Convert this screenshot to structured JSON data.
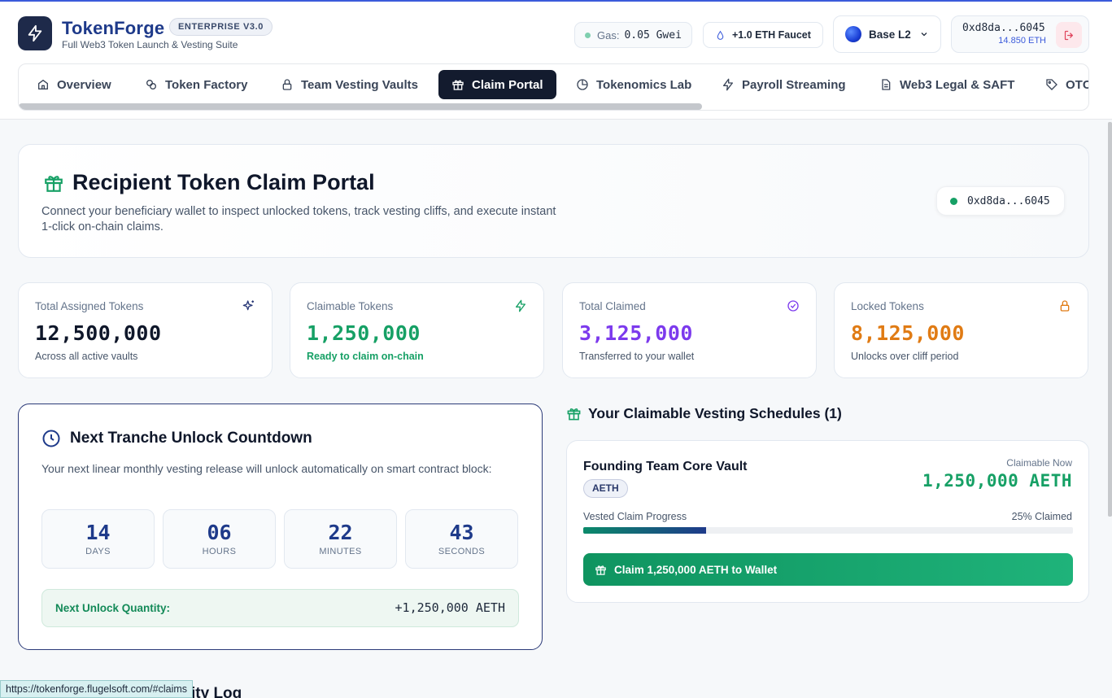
{
  "app": {
    "brand": "TokenForge",
    "edition_badge": "ENTERPRISE V3.0",
    "tagline": "Full Web3 Token Launch & Vesting Suite"
  },
  "header": {
    "gas_label": "Gas:",
    "gas_value": "0.05 Gwei",
    "faucet_label": "+1.0 ETH Faucet",
    "network_label": "Base L2",
    "wallet_address": "0xd8da...6045",
    "wallet_balance": "14.850 ETH"
  },
  "tabs": [
    {
      "label": "Overview",
      "icon": "home-icon"
    },
    {
      "label": "Token Factory",
      "icon": "coins-icon"
    },
    {
      "label": "Team Vesting Vaults",
      "icon": "lock-icon"
    },
    {
      "label": "Claim Portal",
      "icon": "gift-icon",
      "active": true
    },
    {
      "label": "Tokenomics Lab",
      "icon": "pie-chart-icon"
    },
    {
      "label": "Payroll Streaming",
      "icon": "bolt-icon"
    },
    {
      "label": "Web3 Legal & SAFT",
      "icon": "document-icon"
    },
    {
      "label": "OTC",
      "icon": "tag-icon"
    }
  ],
  "hero": {
    "title": "Recipient Token Claim Portal",
    "description": "Connect your beneficiary wallet to inspect unlocked tokens, track vesting cliffs, and execute instant 1-click on-chain claims.",
    "connected_address": "0xd8da...6045"
  },
  "stats": [
    {
      "label": "Total Assigned Tokens",
      "value": "12,500,000",
      "sub": "Across all active vaults",
      "color": "#0f172a",
      "sub_color": "#475569",
      "icon": "sparkle-icon"
    },
    {
      "label": "Claimable Tokens",
      "value": "1,250,000",
      "sub": "Ready to claim on-chain",
      "color": "#16a065",
      "sub_color": "#16a065",
      "icon": "bolt-icon"
    },
    {
      "label": "Total Claimed",
      "value": "3,125,000",
      "sub": "Transferred to your wallet",
      "color": "#7c3aed",
      "sub_color": "#475569",
      "icon": "check-circle-icon"
    },
    {
      "label": "Locked Tokens",
      "value": "8,125,000",
      "sub": "Unlocks over cliff period",
      "color": "#e07b14",
      "sub_color": "#475569",
      "icon": "lock-icon"
    }
  ],
  "countdown": {
    "title": "Next Tranche Unlock Countdown",
    "description": "Your next linear monthly vesting release will unlock automatically on smart contract block:",
    "units": [
      {
        "value": "14",
        "label": "DAYS"
      },
      {
        "value": "06",
        "label": "HOURS"
      },
      {
        "value": "22",
        "label": "MINUTES"
      },
      {
        "value": "43",
        "label": "SECONDS"
      }
    ],
    "next_label": "Next Unlock Quantity:",
    "next_value": "+1,250,000 AETH"
  },
  "schedules": {
    "title": "Your Claimable Vesting Schedules (1)",
    "items": [
      {
        "name": "Founding Team Core Vault",
        "token": "AETH",
        "claimable_label": "Claimable Now",
        "claimable_value": "1,250,000 AETH",
        "progress_label": "Vested Claim Progress",
        "progress_text": "25% Claimed",
        "progress": 0.25,
        "button_label": "Claim 1,250,000 AETH to Wallet"
      }
    ]
  },
  "bottom_partial_title": "ity Log",
  "status_url": "https://tokenforge.flugelsoft.com/#claims",
  "colors": {
    "accent": "#1e3a8a",
    "success": "#16a065",
    "purple": "#7c3aed",
    "orange": "#e07b14",
    "active_tab": "#131b2e"
  }
}
